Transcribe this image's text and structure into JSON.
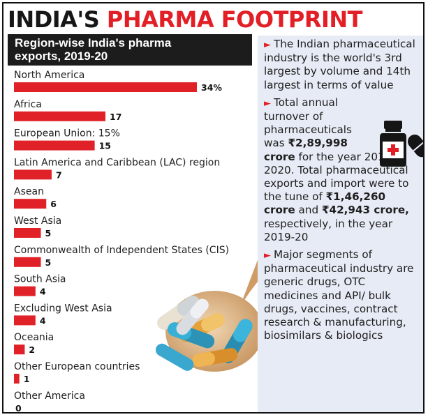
{
  "title": {
    "part1": "INDIA'S ",
    "part2": "PHARMA FOOTPRINT"
  },
  "chart_data": {
    "type": "bar",
    "orientation": "horizontal",
    "title": "Region-wise India's pharma exports, 2019-20",
    "title_line1": "Region-wise India's pharma",
    "title_line2": "exports, 2019-20",
    "categories": [
      "North America",
      "Africa",
      "European Union: 15%",
      "Latin America and Caribbean (LAC) region",
      "Asean",
      "West Asia",
      "Commonwealth of Independent States (CIS)",
      "South Asia",
      "Excluding West Asia",
      "Oceania",
      "Other European countries",
      "Other America"
    ],
    "values": [
      34,
      17,
      15,
      7,
      6,
      5,
      5,
      4,
      4,
      2,
      1,
      0
    ],
    "value_labels": [
      "34%",
      "17",
      "15",
      "7",
      "6",
      "5",
      "5",
      "4",
      "4",
      "2",
      "1",
      "0"
    ],
    "unit": "%",
    "xlim": [
      0,
      34
    ],
    "grid": false,
    "bar_color": "#e02127"
  },
  "right_panel": {
    "p1": "The Indian pharmaceutical industry is the world's 3rd largest by volume and 14th largest in terms of value",
    "p2_line1": "Total annual",
    "p2_line2": "turnover of",
    "p2_line3": "pharmaceuticals",
    "p2_line4a": "was",
    "p2_line4b": "₹2,89,998",
    "p2_line5a": "crore",
    "p2_line5b": " for the year 2019-2020. Total pharmaceutical exports and import were to the tune of ",
    "p2_amount1": "₹1,46,260 crore",
    "p2_and": " and ",
    "p2_amount2": "₹42,943 crore,",
    "p2_end": " respectively, in the year 2019-20",
    "p3": "Major segments of pharmaceutical industry are generic drugs, OTC medicines and API/ bulk drugs, vaccines, contract research & manufacturing, biosimilars & biologics"
  },
  "colors": {
    "accent": "#e21f26",
    "dark_band": "#1c1c1c",
    "panel_bg": "#e7ebf5"
  },
  "icons": {
    "arrow": "►",
    "bottle": "medicine-bottle-icon",
    "pills": "pills-spoon-illustration"
  }
}
